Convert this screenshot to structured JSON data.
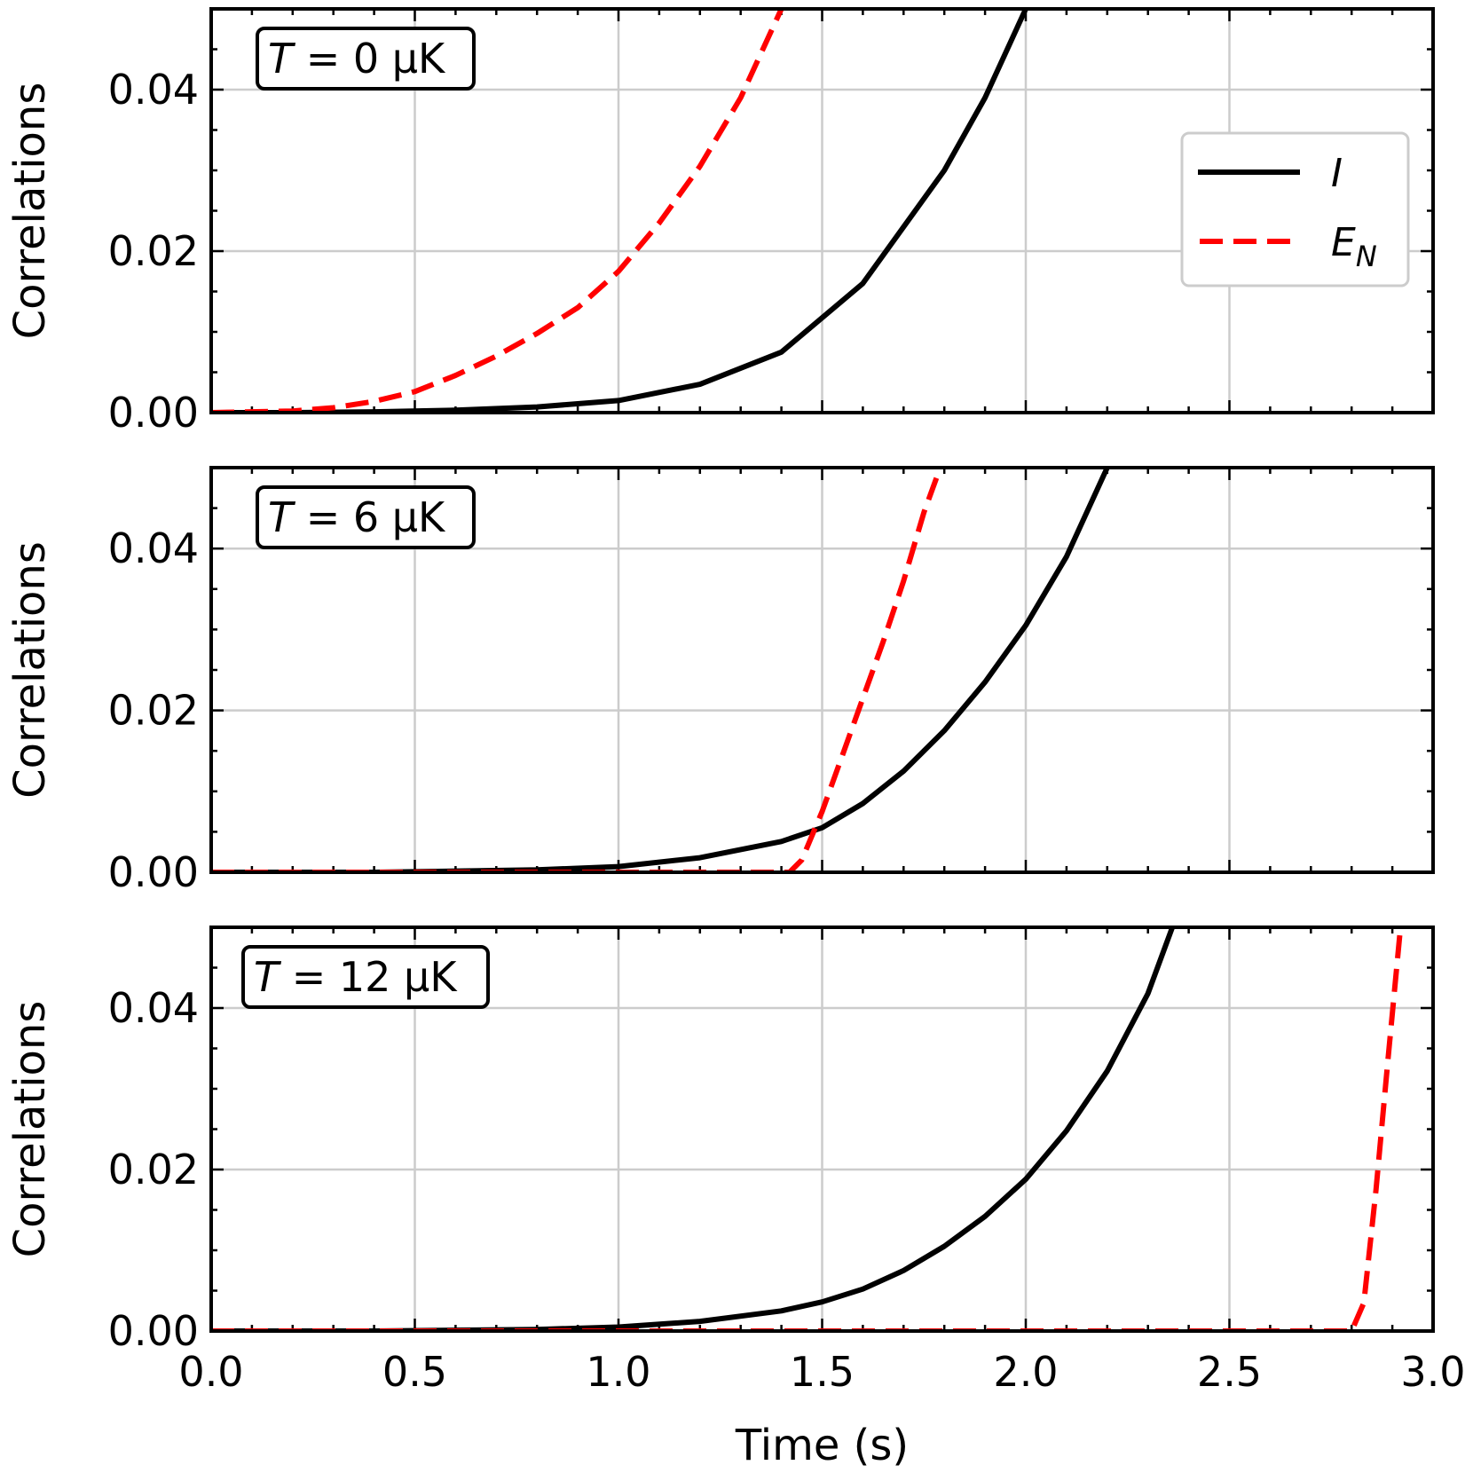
{
  "chart_data": {
    "type": "line",
    "xlabel": "Time (s)",
    "ylabel": "Correlations",
    "xlim": [
      0.0,
      3.0
    ],
    "ylim": [
      0.0,
      0.05
    ],
    "xticks": [
      "0.0",
      "0.5",
      "1.0",
      "1.5",
      "2.0",
      "2.5",
      "3.0"
    ],
    "yticks": [
      "0.00",
      "0.02",
      "0.04"
    ],
    "legend": {
      "position": "top-right of first panel",
      "entries": [
        {
          "series": "I",
          "label": "I",
          "style": "solid",
          "color": "#000000"
        },
        {
          "series": "EN",
          "label": "E",
          "subscript": "N",
          "style": "dashed",
          "color": "#ff0000"
        }
      ]
    },
    "panels": [
      {
        "label_prefix": "T",
        "label_rest": " = 0 μK",
        "series": [
          {
            "name": "I",
            "color": "#000000",
            "x": [
              0.0,
              0.2,
              0.4,
              0.6,
              0.8,
              1.0,
              1.2,
              1.4,
              1.6,
              1.8,
              1.9,
              2.0
            ],
            "y": [
              0.0,
              0.0,
              0.0001,
              0.0003,
              0.0007,
              0.0015,
              0.0035,
              0.0075,
              0.016,
              0.03,
              0.039,
              0.05
            ]
          },
          {
            "name": "EN",
            "color": "#ff0000",
            "x": [
              0.0,
              0.2,
              0.3,
              0.4,
              0.5,
              0.6,
              0.7,
              0.8,
              0.9,
              1.0,
              1.1,
              1.2,
              1.3,
              1.4
            ],
            "y": [
              0.0,
              0.0002,
              0.0006,
              0.0014,
              0.0026,
              0.0046,
              0.007,
              0.0098,
              0.013,
              0.0175,
              0.0235,
              0.0305,
              0.039,
              0.05
            ]
          }
        ]
      },
      {
        "label_prefix": "T",
        "label_rest": " = 6 μK",
        "series": [
          {
            "name": "I",
            "color": "#000000",
            "x": [
              0.0,
              0.4,
              0.8,
              1.0,
              1.2,
              1.4,
              1.5,
              1.6,
              1.7,
              1.8,
              1.9,
              2.0,
              2.1,
              2.2
            ],
            "y": [
              0.0,
              0.0,
              0.0003,
              0.0007,
              0.0018,
              0.0038,
              0.0055,
              0.0085,
              0.0125,
              0.0175,
              0.0235,
              0.0305,
              0.039,
              0.05
            ]
          },
          {
            "name": "EN",
            "color": "#ff0000",
            "x": [
              0.0,
              1.42,
              1.45,
              1.5,
              1.55,
              1.6,
              1.65,
              1.7,
              1.75,
              1.79
            ],
            "y": [
              0.0,
              0.0,
              0.0015,
              0.0075,
              0.0145,
              0.0215,
              0.0285,
              0.036,
              0.0445,
              0.05
            ]
          }
        ]
      },
      {
        "label_prefix": "T",
        "label_rest": " = 12 μK",
        "series": [
          {
            "name": "I",
            "color": "#000000",
            "x": [
              0.0,
              0.4,
              0.8,
              1.0,
              1.2,
              1.4,
              1.5,
              1.6,
              1.7,
              1.8,
              1.9,
              2.0,
              2.1,
              2.2,
              2.3,
              2.36
            ],
            "y": [
              0.0,
              0.0,
              0.0002,
              0.0005,
              0.0012,
              0.0025,
              0.0036,
              0.0052,
              0.0075,
              0.0105,
              0.0142,
              0.0188,
              0.0248,
              0.0322,
              0.0418,
              0.05
            ]
          },
          {
            "name": "EN",
            "color": "#ff0000",
            "x": [
              0.0,
              2.8,
              2.83,
              2.86,
              2.89,
              2.92
            ],
            "y": [
              0.0,
              0.0,
              0.0035,
              0.0175,
              0.034,
              0.05
            ]
          }
        ]
      }
    ]
  }
}
